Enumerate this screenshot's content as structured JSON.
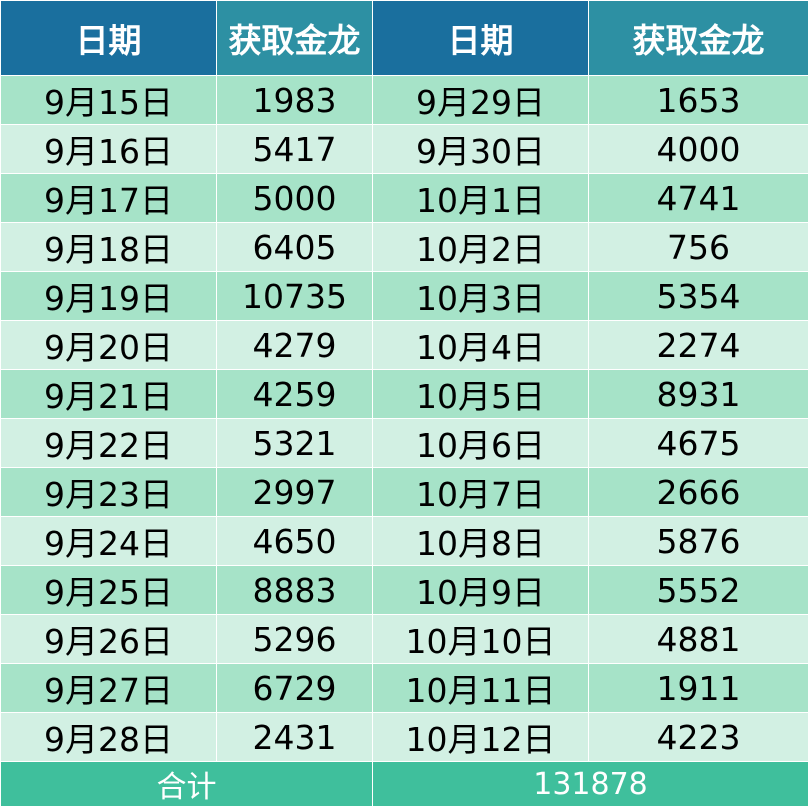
{
  "colors": {
    "header_dark": "#1a6f9e",
    "header_teal": "#2d90a3",
    "row_alt_dark": "#a6e3c8",
    "row_alt_light": "#d2f0e3",
    "total_row": "#3fbf9c"
  },
  "headers": [
    "日期",
    "获取金龙",
    "日期",
    "获取金龙"
  ],
  "rows": [
    [
      "9月15日",
      "1983",
      "9月29日",
      "1653"
    ],
    [
      "9月16日",
      "5417",
      "9月30日",
      "4000"
    ],
    [
      "9月17日",
      "5000",
      "10月1日",
      "4741"
    ],
    [
      "9月18日",
      "6405",
      "10月2日",
      "756"
    ],
    [
      "9月19日",
      "10735",
      "10月3日",
      "5354"
    ],
    [
      "9月20日",
      "4279",
      "10月4日",
      "2274"
    ],
    [
      "9月21日",
      "4259",
      "10月5日",
      "8931"
    ],
    [
      "9月22日",
      "5321",
      "10月6日",
      "4675"
    ],
    [
      "9月23日",
      "2997",
      "10月7日",
      "2666"
    ],
    [
      "9月24日",
      "4650",
      "10月8日",
      "5876"
    ],
    [
      "9月25日",
      "8883",
      "10月9日",
      "5552"
    ],
    [
      "9月26日",
      "5296",
      "10月10日",
      "4881"
    ],
    [
      "9月27日",
      "6729",
      "10月11日",
      "1911"
    ],
    [
      "9月28日",
      "2431",
      "10月12日",
      "4223"
    ]
  ],
  "total": {
    "label": "合计",
    "value": "131878"
  }
}
